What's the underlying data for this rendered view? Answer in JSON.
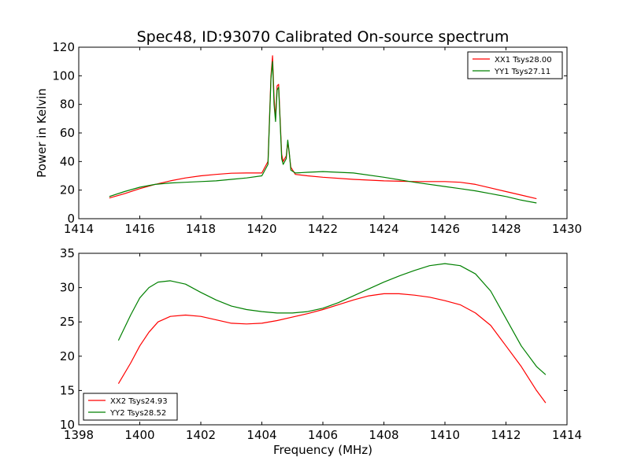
{
  "chart_data": [
    {
      "type": "line",
      "title": "Spec48, ID:93070 Calibrated On-source spectrum",
      "xlabel": "",
      "ylabel": "Power in Kelvin",
      "xlim": [
        1414,
        1430
      ],
      "ylim": [
        0,
        120
      ],
      "x_ticks": [
        1414,
        1416,
        1418,
        1420,
        1422,
        1424,
        1426,
        1428,
        1430
      ],
      "y_ticks": [
        0,
        20,
        40,
        60,
        80,
        100,
        120
      ],
      "grid": false,
      "legend": {
        "placement": "top-right",
        "entries": [
          "XX1 Tsys28.00",
          "YY1 Tsys27.11"
        ]
      },
      "series": [
        {
          "name": "XX1 Tsys28.00",
          "color": "#ff0000",
          "x": [
            1415.0,
            1415.5,
            1416.0,
            1416.5,
            1417.0,
            1417.5,
            1418.0,
            1418.5,
            1419.0,
            1419.5,
            1420.0,
            1420.2,
            1420.3,
            1420.35,
            1420.4,
            1420.45,
            1420.5,
            1420.55,
            1420.6,
            1420.65,
            1420.7,
            1420.8,
            1420.85,
            1420.9,
            1420.95,
            1421.1,
            1421.5,
            1422.0,
            1423.0,
            1424.0,
            1425.0,
            1426.0,
            1426.5,
            1427.0,
            1427.5,
            1428.0,
            1428.5,
            1429.0
          ],
          "y": [
            14.5,
            17.5,
            21.0,
            24.0,
            26.5,
            28.5,
            30.0,
            31.0,
            31.8,
            32.0,
            32.0,
            40.0,
            100.0,
            114.0,
            85.0,
            70.0,
            93.0,
            94.0,
            70.0,
            45.0,
            40.0,
            44.0,
            54.0,
            45.0,
            36.0,
            31.0,
            30.0,
            29.0,
            27.5,
            26.5,
            26.0,
            26.0,
            25.5,
            24.0,
            21.5,
            19.0,
            16.5,
            14.0
          ]
        },
        {
          "name": "YY1 Tsys27.11",
          "color": "#008000",
          "x": [
            1415.0,
            1415.5,
            1416.0,
            1416.5,
            1417.0,
            1417.5,
            1418.0,
            1418.5,
            1419.0,
            1419.5,
            1420.0,
            1420.2,
            1420.3,
            1420.35,
            1420.4,
            1420.45,
            1420.5,
            1420.55,
            1420.6,
            1420.65,
            1420.7,
            1420.8,
            1420.85,
            1420.9,
            1420.95,
            1421.1,
            1421.5,
            1422.0,
            1423.0,
            1424.0,
            1425.0,
            1426.0,
            1426.5,
            1427.0,
            1427.5,
            1428.0,
            1428.5,
            1429.0
          ],
          "y": [
            15.5,
            19.0,
            22.0,
            24.0,
            25.0,
            25.5,
            26.0,
            26.5,
            27.5,
            28.5,
            30.0,
            38.0,
            98.0,
            110.0,
            80.0,
            68.0,
            90.0,
            92.0,
            68.0,
            42.0,
            38.0,
            42.0,
            55.0,
            46.0,
            34.0,
            32.0,
            32.5,
            33.0,
            32.0,
            29.0,
            25.5,
            22.5,
            21.0,
            19.5,
            17.5,
            15.5,
            13.0,
            11.0
          ]
        }
      ]
    },
    {
      "type": "line",
      "title": "",
      "xlabel": "Frequency (MHz)",
      "ylabel": "",
      "xlim": [
        1398,
        1414
      ],
      "ylim": [
        10,
        35
      ],
      "x_ticks": [
        1398,
        1400,
        1402,
        1404,
        1406,
        1408,
        1410,
        1412,
        1414
      ],
      "y_ticks": [
        10,
        15,
        20,
        25,
        30,
        35
      ],
      "grid": false,
      "legend": {
        "placement": "bottom-left",
        "entries": [
          "XX2 Tsys24.93",
          "YY2 Tsys28.52"
        ]
      },
      "series": [
        {
          "name": "XX2 Tsys24.93",
          "color": "#ff0000",
          "x": [
            1399.3,
            1399.7,
            1400.0,
            1400.3,
            1400.6,
            1401.0,
            1401.5,
            1402.0,
            1402.5,
            1403.0,
            1403.5,
            1404.0,
            1404.5,
            1405.0,
            1405.5,
            1406.0,
            1406.5,
            1407.0,
            1407.5,
            1408.0,
            1408.5,
            1409.0,
            1409.5,
            1410.0,
            1410.5,
            1411.0,
            1411.5,
            1412.0,
            1412.5,
            1413.0,
            1413.3
          ],
          "y": [
            16.0,
            19.0,
            21.5,
            23.5,
            25.0,
            25.8,
            26.0,
            25.8,
            25.3,
            24.8,
            24.7,
            24.8,
            25.2,
            25.7,
            26.2,
            26.8,
            27.5,
            28.2,
            28.8,
            29.1,
            29.1,
            28.9,
            28.6,
            28.1,
            27.5,
            26.3,
            24.5,
            21.5,
            18.5,
            15.0,
            13.2
          ]
        },
        {
          "name": "YY2 Tsys28.52",
          "color": "#008000",
          "x": [
            1399.3,
            1399.7,
            1400.0,
            1400.3,
            1400.6,
            1401.0,
            1401.5,
            1402.0,
            1402.5,
            1403.0,
            1403.5,
            1404.0,
            1404.5,
            1405.0,
            1405.5,
            1406.0,
            1406.5,
            1407.0,
            1407.5,
            1408.0,
            1408.5,
            1409.0,
            1409.5,
            1410.0,
            1410.5,
            1411.0,
            1411.5,
            1412.0,
            1412.5,
            1413.0,
            1413.3
          ],
          "y": [
            22.3,
            26.0,
            28.5,
            30.0,
            30.8,
            31.0,
            30.5,
            29.3,
            28.2,
            27.3,
            26.8,
            26.5,
            26.3,
            26.3,
            26.5,
            27.0,
            27.8,
            28.8,
            29.8,
            30.8,
            31.7,
            32.5,
            33.2,
            33.5,
            33.2,
            32.0,
            29.5,
            25.5,
            21.5,
            18.5,
            17.3
          ]
        }
      ]
    }
  ]
}
